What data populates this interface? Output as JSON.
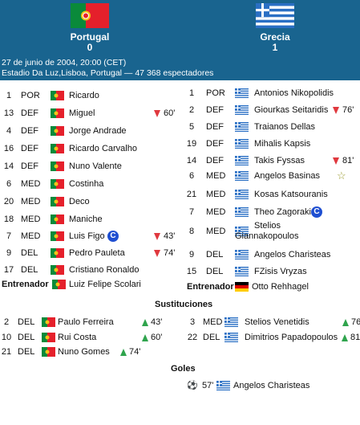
{
  "match": {
    "home": {
      "name": "Portugal",
      "score": "0"
    },
    "away": {
      "name": "Grecia",
      "score": "1"
    },
    "date": "27 de junio de 2004, 20:00 (CET)",
    "venue": "Estadio Da Luz,Lisboa, Portugal — 47 368 espectadores"
  },
  "home_lineup": [
    {
      "num": "1",
      "pos": "POR",
      "name": "Ricardo"
    },
    {
      "num": "13",
      "pos": "DEF",
      "name": "Miguel",
      "sub_out": "60'"
    },
    {
      "num": "4",
      "pos": "DEF",
      "name": "Jorge Andrade"
    },
    {
      "num": "16",
      "pos": "DEF",
      "name": "Ricardo Carvalho"
    },
    {
      "num": "14",
      "pos": "DEF",
      "name": "Nuno Valente"
    },
    {
      "num": "6",
      "pos": "MED",
      "name": "Costinha"
    },
    {
      "num": "20",
      "pos": "MED",
      "name": "Deco"
    },
    {
      "num": "18",
      "pos": "MED",
      "name": "Maniche"
    },
    {
      "num": "7",
      "pos": "MED",
      "name": "Luis Figo",
      "captain": "C",
      "sub_out": "43'"
    },
    {
      "num": "9",
      "pos": "DEL",
      "name": "Pedro Pauleta",
      "sub_out": "74'"
    },
    {
      "num": "17",
      "pos": "DEL",
      "name": "Cristiano Ronaldo"
    }
  ],
  "home_coach": {
    "label": "Entrenador",
    "name": "Luiz Felipe Scolari"
  },
  "away_lineup": [
    {
      "num": "1",
      "pos": "POR",
      "name": "Antonios Nikopolidis"
    },
    {
      "num": "2",
      "pos": "DEF",
      "name": "Giourkas Seitaridis",
      "sub_out": "76'"
    },
    {
      "num": "5",
      "pos": "DEF",
      "name": "Traianos Dellas"
    },
    {
      "num": "19",
      "pos": "DEF",
      "name": "Mihalis Kapsis"
    },
    {
      "num": "14",
      "pos": "DEF",
      "name": "Takis Fyssas",
      "sub_out": "81'"
    },
    {
      "num": "6",
      "pos": "MED",
      "name": "Angelos Basinas"
    },
    {
      "num": "21",
      "pos": "MED",
      "name": "Kosas Katsouranis"
    },
    {
      "num": "7",
      "pos": "MED",
      "name": "Theo Zagorakis",
      "captain": "C"
    },
    {
      "num": "8",
      "pos": "MED",
      "name_line1": "Stelios",
      "name_line2": "Giannakopoulos"
    },
    {
      "num": "9",
      "pos": "DEL",
      "name": "Angelos Charisteas"
    },
    {
      "num": "15",
      "pos": "DEL",
      "name": "FZisis Vryzas"
    }
  ],
  "away_coach": {
    "label": "Entrenador",
    "name": "Otto Rehhagel"
  },
  "subs_title": "Sustituciones",
  "home_subs": [
    {
      "num": "2",
      "pos": "DEL",
      "name": "Paulo Ferreira",
      "min": "43'"
    },
    {
      "num": "10",
      "pos": "DEL",
      "name": "Rui Costa",
      "min": "60'"
    },
    {
      "num": "21",
      "pos": "DEL",
      "name": "Nuno Gomes",
      "min": "74'"
    }
  ],
  "away_subs": [
    {
      "num": "3",
      "pos": "MED",
      "name": "Stelios Venetidis",
      "min": "76"
    },
    {
      "num": "22",
      "pos": "DEL",
      "name": "Dimitrios Papadopoulos",
      "min": "81"
    }
  ],
  "goals_title": "Goles",
  "goals": [
    {
      "min": "57'",
      "name": "Angelos Charisteas"
    }
  ],
  "colors": {
    "header_bg": "#19648f",
    "sub_out": "#e0383e",
    "sub_in": "#2fa44d",
    "captain": "#1f4fd1"
  }
}
